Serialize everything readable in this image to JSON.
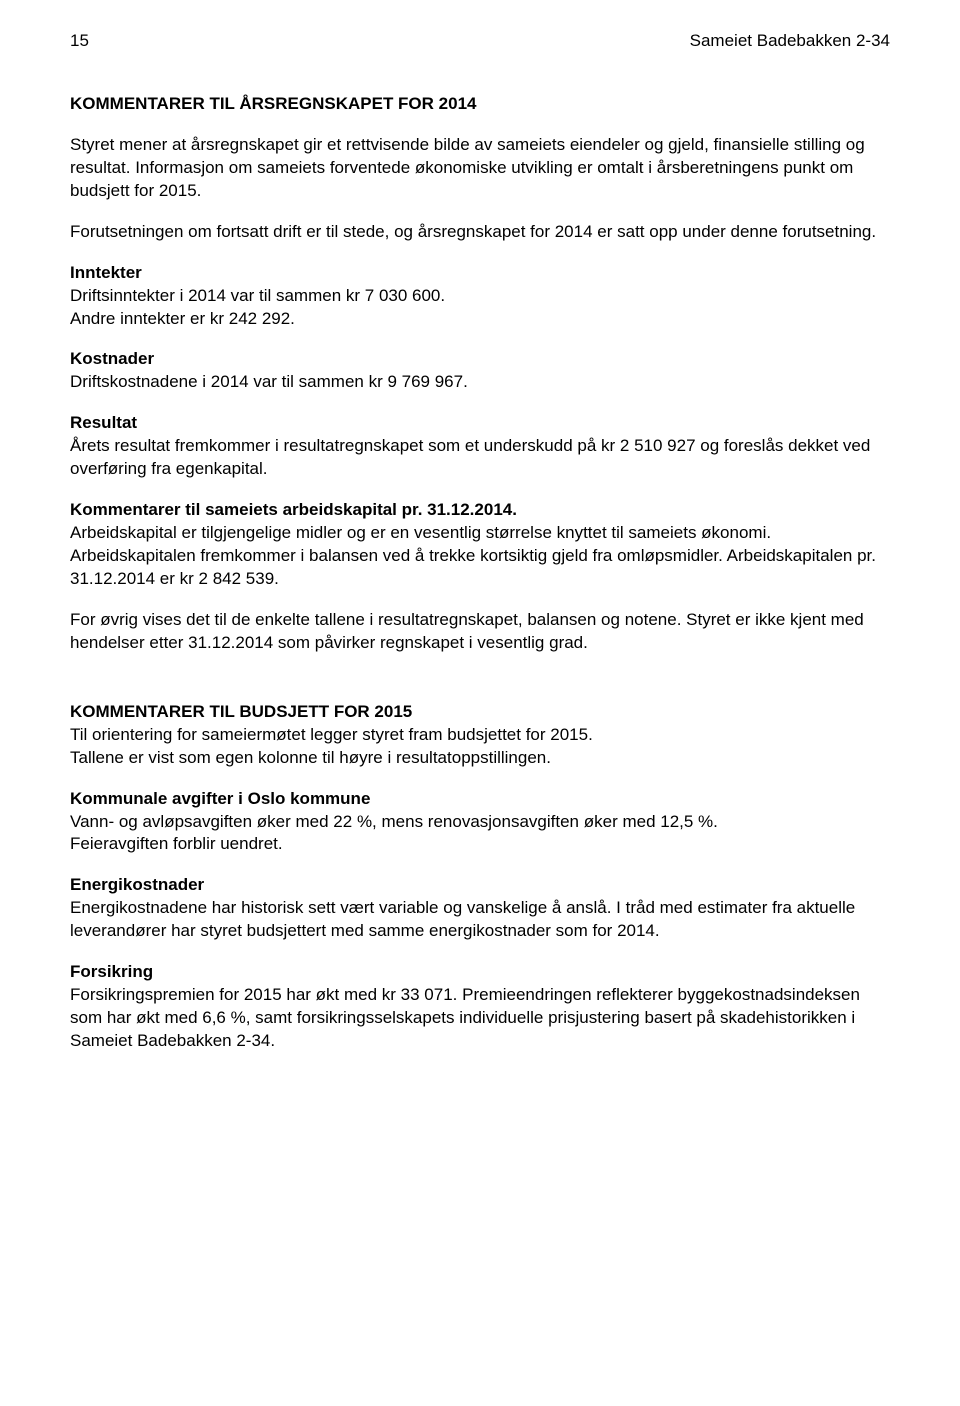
{
  "header": {
    "page_number": "15",
    "doc_title": "Sameiet Badebakken 2-34"
  },
  "title1": "KOMMENTARER TIL ÅRSREGNSKAPET FOR 2014",
  "p1": "Styret mener at årsregnskapet gir et rettvisende bilde av sameiets eiendeler og gjeld, finansielle stilling og resultat. Informasjon om sameiets forventede økonomiske utvikling er omtalt i årsberetningens punkt om budsjett for 2015.",
  "p2": "Forutsetningen om fortsatt drift er til stede, og årsregnskapet for 2014 er satt opp under denne forutsetning.",
  "h_inntekter": "Inntekter",
  "p_inntekter1": "Driftsinntekter i 2014 var til sammen kr 7 030 600.",
  "p_inntekter2": "Andre inntekter er kr 242 292.",
  "h_kostnader": "Kostnader",
  "p_kostnader": "Driftskostnadene i 2014 var til sammen kr 9 769 967.",
  "h_resultat": "Resultat",
  "p_resultat": "Årets resultat fremkommer i resultatregnskapet som et underskudd på kr 2 510 927 og foreslås dekket ved overføring fra egenkapital.",
  "h_kommentarer": "Kommentarer til sameiets arbeidskapital pr. 31.12.2014.",
  "p_kommentarer": "Arbeidskapital er tilgjengelige midler og er en vesentlig størrelse knyttet til sameiets økonomi. Arbeidskapitalen fremkommer i balansen ved å trekke kortsiktig gjeld fra omløpsmidler. Arbeidskapitalen pr. 31.12.2014 er kr 2 842 539.",
  "p_forovrig": "For øvrig vises det til de enkelte tallene i resultatregnskapet, balansen og notene. Styret er ikke kjent med hendelser etter 31.12.2014 som påvirker regnskapet i vesentlig grad.",
  "title2": "KOMMENTARER TIL BUDSJETT FOR 2015",
  "p_budsjett1": "Til orientering for sameiermøtet legger styret fram budsjettet for 2015.",
  "p_budsjett2": "Tallene er vist som egen kolonne til høyre i resultatoppstillingen.",
  "h_kommunale": "Kommunale avgifter i Oslo kommune",
  "p_kommunale1": "Vann- og avløpsavgiften øker med 22 %, mens renovasjonsavgiften øker med 12,5 %.",
  "p_kommunale2": "Feieravgiften forblir uendret.",
  "h_energi": "Energikostnader",
  "p_energi": "Energikostnadene har historisk sett vært variable og vanskelige å anslå. I tråd med estimater fra aktuelle leverandører har styret budsjettert med samme energikostnader som for 2014.",
  "h_forsikring": "Forsikring",
  "p_forsikring": "Forsikringspremien for 2015 har økt med kr 33 071. Premieendringen reflekterer byggekostnadsindeksen som har økt med 6,6 %, samt forsikringsselskapets individuelle prisjustering basert på skadehistorikken i Sameiet Badebakken 2-34."
}
